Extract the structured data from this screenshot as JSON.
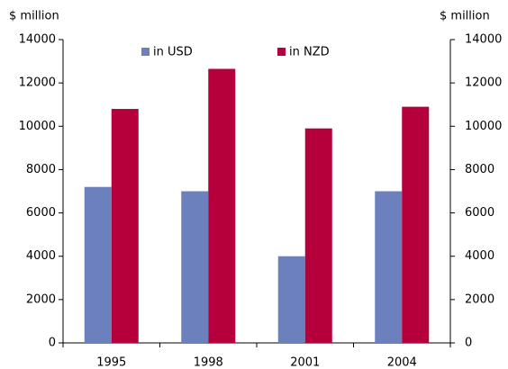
{
  "chart_data": {
    "type": "bar",
    "ylabel": "$ million",
    "y2label": "$ million",
    "categories": [
      "1995",
      "1998",
      "2001",
      "2004"
    ],
    "series": [
      {
        "name": "in USD",
        "color": "#6b80bd",
        "values": [
          7200,
          7000,
          4000,
          7000
        ]
      },
      {
        "name": "in NZD",
        "color": "#b5003c",
        "values": [
          10800,
          12650,
          9900,
          10900
        ]
      }
    ],
    "ylim": [
      0,
      14000
    ],
    "yticks": [
      0,
      2000,
      4000,
      6000,
      8000,
      10000,
      12000,
      14000
    ],
    "y2lim": [
      0,
      14000
    ],
    "y2ticks": [
      0,
      2000,
      4000,
      6000,
      8000,
      10000,
      12000,
      14000
    ],
    "grid": false,
    "legend": "top"
  }
}
